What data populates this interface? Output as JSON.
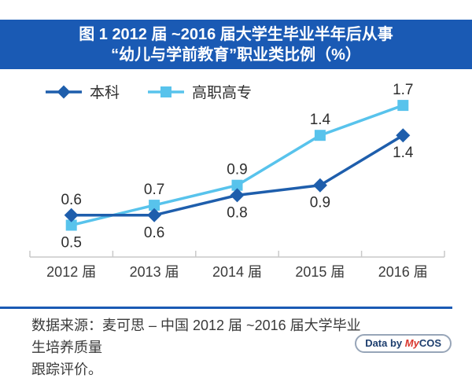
{
  "title": {
    "line1": "图 1  2012 届 ~2016 届大学生毕业半年后从事",
    "line2": "“幼儿与学前教育”职业类比例（%）"
  },
  "colors": {
    "banner_bg": "#1A5AB4",
    "banner_text": "#FFFFFF",
    "footer_rule": "#1A5AB4",
    "benke_series": "#1E5EAC",
    "gaozhi_series": "#58C3EC",
    "axis": "#C9C9C9",
    "value_label_text": "#2E2E2E",
    "badge_accent": "#D9342B",
    "badge_text": "#1D3E6E"
  },
  "chart_data": {
    "type": "line",
    "title": "图1 2012届~2016届大学生毕业半年后从事“幼儿与学前教育”职业类比例（%）",
    "categories": [
      "2012 届",
      "2013 届",
      "2014 届",
      "2015 届",
      "2016 届"
    ],
    "series": [
      {
        "name": "本科",
        "marker": "diamond",
        "color": "#1E5EAC",
        "values": [
          0.6,
          0.6,
          0.8,
          0.9,
          1.4
        ],
        "label_positions": [
          "above",
          "below",
          "below",
          "below",
          "below"
        ]
      },
      {
        "name": "高职高专",
        "marker": "square",
        "color": "#58C3EC",
        "values": [
          0.5,
          0.7,
          0.9,
          1.4,
          1.7
        ],
        "label_positions": [
          "below",
          "above",
          "above",
          "above",
          "above"
        ]
      }
    ],
    "xlabel": "",
    "ylabel": "",
    "ylim": [
      0.3,
      1.9
    ],
    "grid": false,
    "legend_position": "top-left",
    "value_labels": true
  },
  "footer": {
    "source_line1": "数据来源：麦可思 – 中国 2012 届 ~2016 届大学毕业生培养质量",
    "source_line2": "跟踪评价。",
    "badge": {
      "prefix": "Data by ",
      "brand_accent": "My",
      "brand_rest": "COS"
    }
  }
}
